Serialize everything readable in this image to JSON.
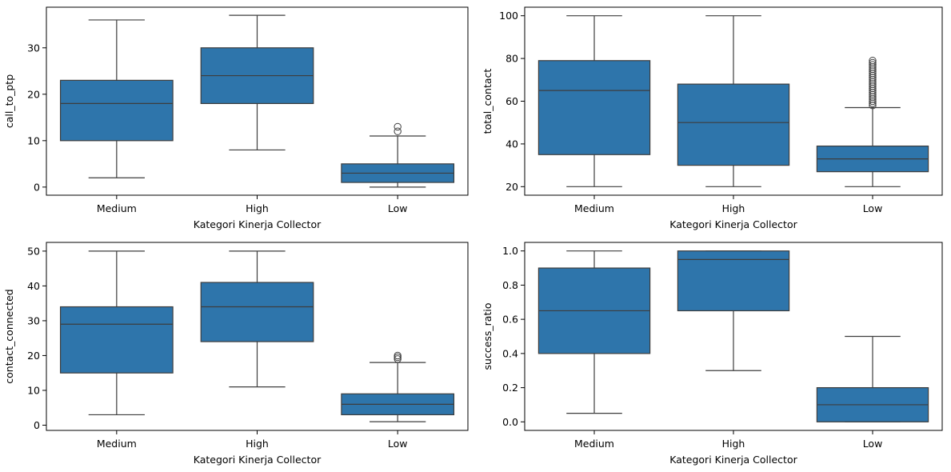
{
  "colors": {
    "box_fill": "#2e75ab",
    "line": "#3d3d3d",
    "axis": "#000000"
  },
  "chart_data": [
    {
      "type": "box",
      "xlabel": "Kategori Kinerja Collector",
      "ylabel": "call_to_ptp",
      "categories": [
        "Medium",
        "High",
        "Low"
      ],
      "ylim": [
        -1.75,
        38.75
      ],
      "yticks": [
        0,
        10,
        20,
        30
      ],
      "ytick_labels": [
        "0",
        "10",
        "20",
        "30"
      ],
      "grid": false,
      "boxes": [
        {
          "category": "Medium",
          "whislo": 2,
          "q1": 10,
          "med": 18,
          "q3": 23,
          "whishi": 36,
          "fliers": []
        },
        {
          "category": "High",
          "whislo": 8,
          "q1": 18,
          "med": 24,
          "q3": 30,
          "whishi": 37,
          "fliers": []
        },
        {
          "category": "Low",
          "whislo": 0,
          "q1": 1,
          "med": 3,
          "q3": 5,
          "whishi": 11,
          "fliers": [
            12,
            13
          ]
        }
      ]
    },
    {
      "type": "box",
      "xlabel": "Kategori Kinerja Collector",
      "ylabel": "total_contact",
      "categories": [
        "Medium",
        "High",
        "Low"
      ],
      "ylim": [
        16,
        104
      ],
      "yticks": [
        20,
        40,
        60,
        80,
        100
      ],
      "ytick_labels": [
        "20",
        "40",
        "60",
        "80",
        "100"
      ],
      "grid": false,
      "boxes": [
        {
          "category": "Medium",
          "whislo": 20,
          "q1": 35,
          "med": 65,
          "q3": 79,
          "whishi": 100,
          "fliers": []
        },
        {
          "category": "High",
          "whislo": 20,
          "q1": 30,
          "med": 50,
          "q3": 68,
          "whishi": 100,
          "fliers": []
        },
        {
          "category": "Low",
          "whislo": 20,
          "q1": 27,
          "med": 33,
          "q3": 39,
          "whishi": 57,
          "fliers": [
            58,
            59,
            60,
            61,
            62,
            63,
            64,
            65,
            66,
            67,
            68,
            69,
            70,
            71,
            72,
            73,
            74,
            75,
            76,
            77,
            78,
            79
          ]
        }
      ]
    },
    {
      "type": "box",
      "xlabel": "Kategori Kinerja Collector",
      "ylabel": "contact_connected",
      "categories": [
        "Medium",
        "High",
        "Low"
      ],
      "ylim": [
        -1.5,
        52.5
      ],
      "yticks": [
        0,
        10,
        20,
        30,
        40,
        50
      ],
      "ytick_labels": [
        "0",
        "10",
        "20",
        "30",
        "40",
        "50"
      ],
      "grid": false,
      "boxes": [
        {
          "category": "Medium",
          "whislo": 3,
          "q1": 15,
          "med": 29,
          "q3": 34,
          "whishi": 50,
          "fliers": []
        },
        {
          "category": "High",
          "whislo": 11,
          "q1": 24,
          "med": 34,
          "q3": 41,
          "whishi": 50,
          "fliers": []
        },
        {
          "category": "Low",
          "whislo": 1,
          "q1": 3,
          "med": 6,
          "q3": 9,
          "whishi": 18,
          "fliers": [
            19,
            19.5,
            20
          ]
        }
      ]
    },
    {
      "type": "box",
      "xlabel": "Kategori Kinerja Collector",
      "ylabel": "success_ratio",
      "categories": [
        "Medium",
        "High",
        "Low"
      ],
      "ylim": [
        -0.05,
        1.05
      ],
      "yticks": [
        0,
        0.2,
        0.4,
        0.6,
        0.8,
        1.0
      ],
      "ytick_labels": [
        "0.0",
        "0.2",
        "0.4",
        "0.6",
        "0.8",
        "1.0"
      ],
      "grid": false,
      "boxes": [
        {
          "category": "Medium",
          "whislo": 0.05,
          "q1": 0.4,
          "med": 0.65,
          "q3": 0.9,
          "whishi": 1.0,
          "fliers": []
        },
        {
          "category": "High",
          "whislo": 0.3,
          "q1": 0.65,
          "med": 0.95,
          "q3": 1.0,
          "whishi": 1.0,
          "fliers": []
        },
        {
          "category": "Low",
          "whislo": 0,
          "q1": 0,
          "med": 0.1,
          "q3": 0.2,
          "whishi": 0.5,
          "fliers": []
        }
      ]
    }
  ]
}
